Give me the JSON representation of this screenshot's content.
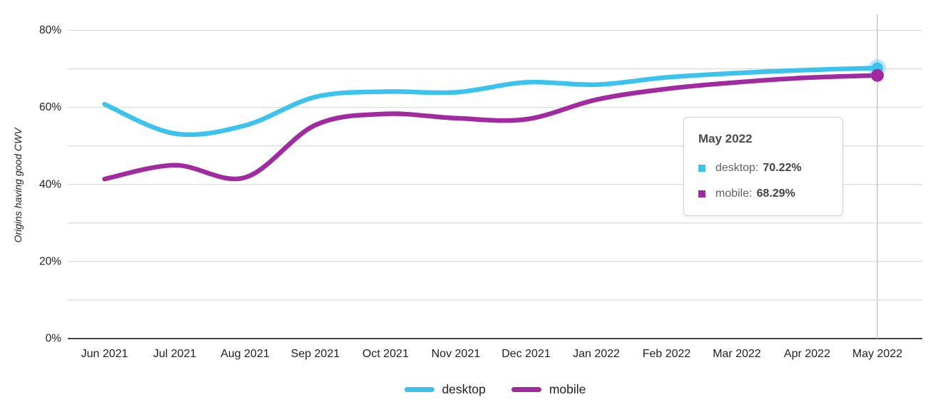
{
  "chart_data": {
    "type": "line",
    "title": "",
    "xlabel": "",
    "ylabel": "Origins having good CWV",
    "categories": [
      "Jun 2021",
      "Jul 2021",
      "Aug 2021",
      "Sep 2021",
      "Oct 2021",
      "Nov 2021",
      "Dec 2021",
      "Jan 2022",
      "Feb 2022",
      "Mar 2022",
      "Apr 2022",
      "May 2022"
    ],
    "series": [
      {
        "name": "desktop",
        "color": "#3BC3ED",
        "values": [
          60.8,
          53.2,
          55.3,
          62.7,
          64.1,
          63.9,
          66.5,
          65.9,
          67.8,
          68.9,
          69.7,
          70.22
        ]
      },
      {
        "name": "mobile",
        "color": "#A22AA0",
        "values": [
          41.4,
          45.0,
          41.8,
          55.4,
          58.3,
          57.2,
          56.9,
          62.0,
          64.8,
          66.5,
          67.7,
          68.29
        ]
      }
    ],
    "ylim": [
      0,
      80
    ],
    "yticks": [
      {
        "value": 0,
        "label": "0%"
      },
      {
        "value": 10,
        "label": ""
      },
      {
        "value": 20,
        "label": "20%"
      },
      {
        "value": 30,
        "label": ""
      },
      {
        "value": 40,
        "label": "40%"
      },
      {
        "value": 50,
        "label": ""
      },
      {
        "value": 60,
        "label": "60%"
      },
      {
        "value": 70,
        "label": ""
      },
      {
        "value": 80,
        "label": "80%"
      }
    ],
    "grid": "horizontal",
    "smooth": true,
    "legend_position": "bottom",
    "highlighted_x": "May 2022",
    "crosshair": true,
    "end_markers": true
  },
  "tooltip": {
    "title": "May 2022",
    "rows": [
      {
        "series": "desktop",
        "label": "desktop:",
        "value": "70.22%",
        "color": "#3BC3ED"
      },
      {
        "series": "mobile",
        "label": "mobile:",
        "value": "68.29%",
        "color": "#A22AA0"
      }
    ]
  },
  "colors": {
    "grid": "#dcdcdc",
    "axis": "#424242",
    "crosshair": "#c8c8c8",
    "tick_text": "#212121"
  }
}
